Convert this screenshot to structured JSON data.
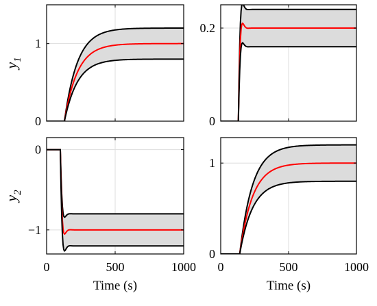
{
  "colors": {
    "band_fill": "#dcdcdc",
    "bound_line": "#000000",
    "nominal_line": "#ff0000",
    "grid": "#dddddd",
    "axes": "#000000"
  },
  "chart_data": [
    {
      "type": "area",
      "panel": "top-left",
      "grid": true,
      "xlim": [
        0,
        1000
      ],
      "ylim": [
        0,
        1.5
      ],
      "xticks": [
        0,
        500,
        1000
      ],
      "xtick_labels_shown": false,
      "yticks": [
        0,
        1
      ],
      "ytick_labels": [
        "0",
        "1"
      ],
      "xlabel": "",
      "ylabel": {
        "base": "y",
        "sub": "1"
      },
      "response": {
        "kind": "first-order",
        "start_s": 130,
        "tau_s": 95,
        "overshoot": false
      },
      "series": [
        {
          "role": "upper-bound",
          "color": "#000000",
          "final_value": 1.2
        },
        {
          "role": "nominal",
          "color": "#ff0000",
          "final_value": 1.0
        },
        {
          "role": "lower-bound",
          "color": "#000000",
          "final_value": 0.8
        }
      ]
    },
    {
      "type": "area",
      "panel": "top-right",
      "grid": true,
      "xlim": [
        0,
        1000
      ],
      "ylim": [
        0,
        0.25
      ],
      "xticks": [
        0,
        500,
        1000
      ],
      "xtick_labels_shown": false,
      "yticks": [
        0,
        0.2
      ],
      "ytick_labels": [
        "0",
        "0.2"
      ],
      "xlabel": "",
      "ylabel": null,
      "response": {
        "kind": "fast-overshoot",
        "start_s": 130,
        "tau_s": 12,
        "overshoot": true
      },
      "series": [
        {
          "role": "upper-bound",
          "color": "#000000",
          "final_value": 0.24
        },
        {
          "role": "nominal",
          "color": "#ff0000",
          "final_value": 0.2
        },
        {
          "role": "lower-bound",
          "color": "#000000",
          "final_value": 0.16
        }
      ]
    },
    {
      "type": "area",
      "panel": "bottom-left",
      "grid": true,
      "xlim": [
        0,
        1000
      ],
      "ylim": [
        -1.3,
        0.15
      ],
      "xticks": [
        0,
        500,
        1000
      ],
      "xtick_labels_shown": true,
      "xtick_labels": [
        "0",
        "500",
        "1000"
      ],
      "yticks": [
        -1,
        0
      ],
      "ytick_labels": [
        "−1",
        "0"
      ],
      "xlabel": "Time (s)",
      "ylabel": {
        "base": "y",
        "sub": "2"
      },
      "response": {
        "kind": "fast-overshoot",
        "start_s": 100,
        "tau_s": 12,
        "overshoot": true
      },
      "series": [
        {
          "role": "upper-bound",
          "color": "#000000",
          "final_value": -0.8
        },
        {
          "role": "nominal",
          "color": "#ff0000",
          "final_value": -1.0
        },
        {
          "role": "lower-bound",
          "color": "#000000",
          "final_value": -1.2
        }
      ]
    },
    {
      "type": "area",
      "panel": "bottom-right",
      "grid": true,
      "xlim": [
        0,
        1000
      ],
      "ylim": [
        0,
        1.28
      ],
      "xticks": [
        0,
        500,
        1000
      ],
      "xtick_labels_shown": true,
      "xtick_labels": [
        "0",
        "500",
        "1000"
      ],
      "yticks": [
        0,
        1
      ],
      "ytick_labels": [
        "0",
        "1"
      ],
      "xlabel": "Time (s)",
      "ylabel": null,
      "response": {
        "kind": "first-order",
        "start_s": 140,
        "tau_s": 95,
        "overshoot": false
      },
      "series": [
        {
          "role": "upper-bound",
          "color": "#000000",
          "final_value": 1.2
        },
        {
          "role": "nominal",
          "color": "#ff0000",
          "final_value": 1.0
        },
        {
          "role": "lower-bound",
          "color": "#000000",
          "final_value": 0.8
        }
      ]
    }
  ]
}
